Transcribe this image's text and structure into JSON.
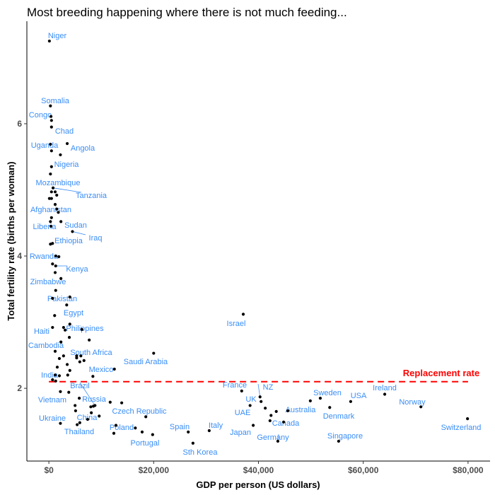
{
  "chart_data": {
    "type": "scatter",
    "title": "Most breeding happening where there is not much feeding...",
    "xlabel": "GDP per person (US dollars)",
    "ylabel": "Total fertility rate (births per woman)",
    "xlim": [
      -4200,
      84200
    ],
    "ylim": [
      0.9,
      7.55
    ],
    "x_ticks": [
      0,
      20000,
      40000,
      60000,
      80000
    ],
    "x_tick_labels": [
      "$0",
      "$20,000",
      "$40,000",
      "$60,000",
      "$80,000"
    ],
    "y_ticks": [
      2,
      4,
      6
    ],
    "y_tick_labels": [
      "2",
      "4",
      "6"
    ],
    "grid": false,
    "point_color": "#000000",
    "label_color": "#3a8ef6",
    "reference_line": {
      "y": 2.1,
      "label": "Replacement rate",
      "color": "#ff0000",
      "style": "dashed"
    },
    "points": [
      {
        "x": 100,
        "y": 7.25,
        "label": "Niger"
      },
      {
        "x": 300,
        "y": 6.27,
        "label": "Somalia"
      },
      {
        "x": 400,
        "y": 6.11,
        "label": "Congo"
      },
      {
        "x": 500,
        "y": 6.05
      },
      {
        "x": 500,
        "y": 5.95,
        "label": "Chad"
      },
      {
        "x": 300,
        "y": 5.69,
        "label": "Uganda"
      },
      {
        "x": 3500,
        "y": 5.7,
        "label": "Angola"
      },
      {
        "x": 500,
        "y": 5.59
      },
      {
        "x": 2200,
        "y": 5.53
      },
      {
        "x": 500,
        "y": 5.35,
        "label": "Nigeria"
      },
      {
        "x": 300,
        "y": 5.24
      },
      {
        "x": 800,
        "y": 5.03,
        "label": "Tanzania"
      },
      {
        "x": 500,
        "y": 4.97,
        "label": "Mozambique"
      },
      {
        "x": 1200,
        "y": 4.97
      },
      {
        "x": 1500,
        "y": 4.92
      },
      {
        "x": 100,
        "y": 4.87
      },
      {
        "x": 500,
        "y": 4.87
      },
      {
        "x": 1200,
        "y": 4.78
      },
      {
        "x": 1500,
        "y": 4.71,
        "label": "Afghanistan"
      },
      {
        "x": 1800,
        "y": 4.66
      },
      {
        "x": 500,
        "y": 4.58
      },
      {
        "x": 300,
        "y": 4.52
      },
      {
        "x": 2300,
        "y": 4.52,
        "label": "Sudan"
      },
      {
        "x": 400,
        "y": 4.45,
        "label": "Liberia"
      },
      {
        "x": 4500,
        "y": 4.37,
        "label": "Iraq"
      },
      {
        "x": 300,
        "y": 4.18
      },
      {
        "x": 700,
        "y": 4.19,
        "label": "Ethiopia"
      },
      {
        "x": 1300,
        "y": 4.0,
        "label": "Rwanda"
      },
      {
        "x": 1900,
        "y": 3.99
      },
      {
        "x": 700,
        "y": 3.88
      },
      {
        "x": 1300,
        "y": 3.85,
        "label": "Kenya"
      },
      {
        "x": 1200,
        "y": 3.75
      },
      {
        "x": 2300,
        "y": 3.66,
        "label": "Zimbabwe"
      },
      {
        "x": 1300,
        "y": 3.48
      },
      {
        "x": 700,
        "y": 3.36,
        "label": "Pakistan"
      },
      {
        "x": 4000,
        "y": 3.38
      },
      {
        "x": 3400,
        "y": 3.26,
        "label": "Egypt"
      },
      {
        "x": 1100,
        "y": 3.1
      },
      {
        "x": 4000,
        "y": 2.97
      },
      {
        "x": 700,
        "y": 2.92,
        "label": "Haiti"
      },
      {
        "x": 2800,
        "y": 2.92
      },
      {
        "x": 3100,
        "y": 2.88,
        "label": "Philippines"
      },
      {
        "x": 6300,
        "y": 2.89
      },
      {
        "x": 3900,
        "y": 2.77
      },
      {
        "x": 7700,
        "y": 2.73
      },
      {
        "x": 2300,
        "y": 2.7
      },
      {
        "x": 1200,
        "y": 2.56,
        "label": "Cambodia"
      },
      {
        "x": 37100,
        "y": 3.12,
        "label": "Israel"
      },
      {
        "x": 20000,
        "y": 2.53,
        "label": "Saudi Arabia"
      },
      {
        "x": 2000,
        "y": 2.45
      },
      {
        "x": 2800,
        "y": 2.49
      },
      {
        "x": 5300,
        "y": 2.49,
        "label": "South Africa"
      },
      {
        "x": 6100,
        "y": 2.49
      },
      {
        "x": 5300,
        "y": 2.46
      },
      {
        "x": 6700,
        "y": 2.42
      },
      {
        "x": 5900,
        "y": 2.4
      },
      {
        "x": 3500,
        "y": 2.36
      },
      {
        "x": 1600,
        "y": 2.32
      },
      {
        "x": 12500,
        "y": 2.29,
        "label": "Mexico"
      },
      {
        "x": 4000,
        "y": 2.27
      },
      {
        "x": 1200,
        "y": 2.2,
        "label": "India"
      },
      {
        "x": 2000,
        "y": 2.19
      },
      {
        "x": 3600,
        "y": 2.2
      },
      {
        "x": 8400,
        "y": 2.18
      },
      {
        "x": 700,
        "y": 2.13
      },
      {
        "x": 1300,
        "y": 2.11
      },
      {
        "x": 2200,
        "y": 1.95,
        "label": "Vietnam"
      },
      {
        "x": 3800,
        "y": 1.94
      },
      {
        "x": 5800,
        "y": 1.85
      },
      {
        "x": 11700,
        "y": 1.79
      },
      {
        "x": 13900,
        "y": 1.78
      },
      {
        "x": 5000,
        "y": 1.74
      },
      {
        "x": 8000,
        "y": 1.72,
        "label": "Russia"
      },
      {
        "x": 8800,
        "y": 1.74,
        "label": "Brazil"
      },
      {
        "x": 8500,
        "y": 1.73
      },
      {
        "x": 5100,
        "y": 1.66
      },
      {
        "x": 8100,
        "y": 1.63,
        "label": "China"
      },
      {
        "x": 9600,
        "y": 1.58
      },
      {
        "x": 7400,
        "y": 1.53
      },
      {
        "x": 18500,
        "y": 1.57,
        "label": "Czech Republic"
      },
      {
        "x": 2200,
        "y": 1.47,
        "label": "Ukraine"
      },
      {
        "x": 5400,
        "y": 1.45,
        "label": "Thailand"
      },
      {
        "x": 5900,
        "y": 1.48
      },
      {
        "x": 12800,
        "y": 1.44,
        "label": "Poland"
      },
      {
        "x": 16500,
        "y": 1.4
      },
      {
        "x": 12400,
        "y": 1.32
      },
      {
        "x": 17800,
        "y": 1.34
      },
      {
        "x": 19800,
        "y": 1.3,
        "label": "Portugal"
      },
      {
        "x": 26600,
        "y": 1.34,
        "label": "Spain"
      },
      {
        "x": 30600,
        "y": 1.36,
        "label": "Italy"
      },
      {
        "x": 27500,
        "y": 1.17,
        "label": "Sth Korea"
      },
      {
        "x": 36800,
        "y": 1.96,
        "label": "France"
      },
      {
        "x": 40300,
        "y": 1.87,
        "label": "NZ"
      },
      {
        "x": 40500,
        "y": 1.8,
        "label": "UK"
      },
      {
        "x": 38400,
        "y": 1.74,
        "label": "UAE"
      },
      {
        "x": 41300,
        "y": 1.7
      },
      {
        "x": 43400,
        "y": 1.65
      },
      {
        "x": 42400,
        "y": 1.59
      },
      {
        "x": 45600,
        "y": 1.66,
        "label": "Australia"
      },
      {
        "x": 49900,
        "y": 1.81
      },
      {
        "x": 51800,
        "y": 1.85,
        "label": "Sweden"
      },
      {
        "x": 53600,
        "y": 1.71,
        "label": "Denmark"
      },
      {
        "x": 57600,
        "y": 1.8,
        "label": "USA"
      },
      {
        "x": 64100,
        "y": 1.91,
        "label": "Ireland"
      },
      {
        "x": 71000,
        "y": 1.72,
        "label": "Norway"
      },
      {
        "x": 79900,
        "y": 1.54,
        "label": "Switzerland"
      },
      {
        "x": 39000,
        "y": 1.44,
        "label": "Japan"
      },
      {
        "x": 42200,
        "y": 1.51
      },
      {
        "x": 44800,
        "y": 1.49,
        "label": "Canada"
      },
      {
        "x": 43700,
        "y": 1.2,
        "label": "Germany"
      },
      {
        "x": 55300,
        "y": 1.2,
        "label": "Singapore"
      }
    ]
  }
}
